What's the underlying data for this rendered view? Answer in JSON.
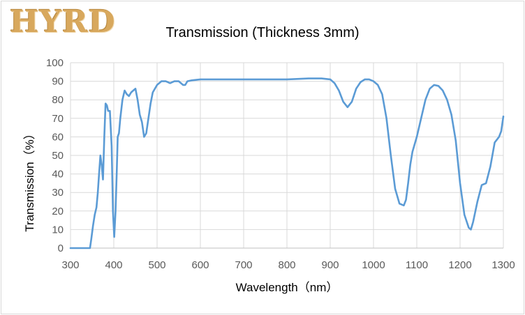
{
  "logo_text": "HYRD",
  "chart_data": {
    "type": "line",
    "title": "Transmission (Thickness 3mm)",
    "xlabel": "Wavelength（nm）",
    "ylabel": "Transmission（%）",
    "xlim": [
      300,
      1300
    ],
    "ylim": [
      0,
      100
    ],
    "xticks": [
      300,
      400,
      500,
      600,
      700,
      800,
      900,
      1000,
      1100,
      1200,
      1300
    ],
    "yticks": [
      0,
      10,
      20,
      30,
      40,
      50,
      60,
      70,
      80,
      90,
      100
    ],
    "grid": true,
    "line_color": "#5b9bd5",
    "series": [
      {
        "x": [
          300,
          345,
          348,
          352,
          356,
          360,
          363,
          366,
          369,
          372,
          375,
          378,
          381,
          384,
          387,
          391,
          395,
          398,
          401,
          404,
          407,
          409,
          412,
          415,
          420,
          425,
          430,
          435,
          440,
          445,
          450,
          455,
          460,
          465,
          470,
          475,
          480,
          485,
          490,
          500,
          510,
          520,
          530,
          540,
          550,
          560,
          565,
          570,
          580,
          600,
          650,
          700,
          750,
          800,
          850,
          880,
          900,
          910,
          920,
          930,
          940,
          950,
          960,
          970,
          980,
          990,
          1000,
          1010,
          1020,
          1030,
          1040,
          1050,
          1060,
          1070,
          1075,
          1080,
          1085,
          1090,
          1100,
          1110,
          1120,
          1130,
          1140,
          1150,
          1160,
          1170,
          1180,
          1190,
          1200,
          1210,
          1220,
          1225,
          1230,
          1240,
          1250,
          1260,
          1270,
          1280,
          1290,
          1295,
          1300
        ],
        "y": [
          0,
          0,
          5,
          12,
          18,
          22,
          30,
          40,
          50,
          45,
          37,
          60,
          78,
          77,
          74,
          74,
          55,
          20,
          6,
          20,
          42,
          60,
          62,
          70,
          80,
          85,
          83,
          82,
          84,
          85,
          86,
          80,
          72,
          68,
          60,
          62,
          70,
          78,
          84,
          88,
          90,
          90,
          89,
          90,
          90,
          88,
          88,
          90,
          90.5,
          91,
          91,
          91,
          91,
          91,
          91.5,
          91.5,
          91,
          89,
          85,
          79,
          76,
          79,
          86,
          89.5,
          91,
          91,
          90,
          88,
          83,
          70,
          50,
          32,
          24,
          23,
          26,
          35,
          45,
          52,
          60,
          70,
          80,
          86,
          88,
          87.5,
          85,
          80,
          72,
          58,
          35,
          18,
          11,
          10,
          14,
          25,
          34,
          35,
          44,
          57,
          60,
          63,
          71
        ]
      }
    ]
  }
}
